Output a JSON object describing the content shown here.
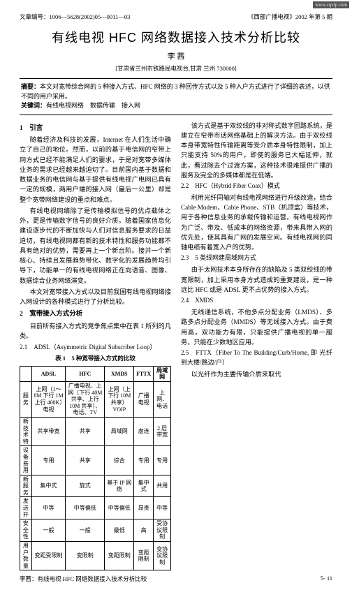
{
  "meta": {
    "corner_url": "www.cqvip.com",
    "article_no_label": "文章编号：",
    "article_no": "1006—5628(2002)05—0011—03",
    "journal_issue": "《西部广播电视》2002 年第 5 期"
  },
  "title": "有线电视 HFC 网络数据接入技术分析比较",
  "author": "李 茜",
  "affiliation": "[甘肃省兰州市铁路局电视台,甘肃 兰州 730000]",
  "abstract": {
    "label": "摘要：",
    "text": "本文对宽带综合网的 5 种接入方式、HFC 网络的 3 种回传方式以及 5 种入户方式进行了详细的表述，以供不同的用户采用。",
    "kw_label": "关键词：",
    "keywords": "有线电视网络　数据传输　接入网"
  },
  "sections": {
    "s1_h": "1　引言",
    "s1_p1": "随着经济及科技的发展，Internet 在人们生活中确立了自己的地位。然而，以前的基于电信网的窄带上网方式已经不能满足人们的要求，于是对宽带多媒体业务的需求已经越来越迫切了。目前国内基于数据和数据业务的电信网与基于提供有线电视广电网已具有一定的规模，两用户端的接入网（最后一公里）却是整个宽带网络建设的重点和难点。",
    "s1_p2": "有线电视网络除了是传输模拟信号的优点载体之外，更是传输数字信号的良好介质。随着国家信息化建设逐步代的不断加快与人们对信息服务要求的日益迫切，有线电视网都有新的技术特性和服务功能都不具有绝对的优势，需要再上一个新台阶。接并一个新核心、持续且发展趋势带化、数字化的发展趋势均引导下，功能单一的有线电视网络正在向语音、图像、数据综合业务网络演变。",
    "s1_p3": "本文对宽带接入方式以及目前我国有线电视网络接入网设计的各种模式进行了分析比较。",
    "s2_h": "2　宽带接入方式分析",
    "s2_p1": "目前所有接入方式的竞争焦点集中在表 1 所列的几类。",
    "s21_h": "2.1　ADSL（Asymmetric Digital Subscriber Loop）",
    "s21_p1": "该方式是基于双绞线的非对称式数字回路系统，是建立在窄带市话网络基础上的解决方法。由于双绞线本身带宽特性传输距离等受介质本身特性限制，加上只能支持 50%的用户，即使的服务已大幅延伸，就此，看过除去个过渡方案，这种技术很难提供广播的服务及完全的多媒体都是在低端。",
    "s22_h": "2.2　HFC（Hybrid Fiber Coax）模式",
    "s22_p1": "利用光纤同轴对有线电视网络进行升级改造，结合 Cable Modem、Cable Phone、STB（机顶盒）等技术，用于各种信息业务的承载传输和运营。有线电视网作为广泛、带及、低成本的网络资源，带来具带入网的优先处，使其具有广网的发展空间。有线电视网的同轴电缆有着宽入户的优势。",
    "s23_h": "2.3　5 类线网建局域网方式",
    "s23_p1": "由于太网技术本身所存在的缺陷及 5 类双绞线的带宽限制，加上采用本身方式造成的重复建设，是一种远比 HFC 或是 ADSL 更不占优势的接入方式。",
    "s24_h": "2.4　XMDS",
    "s24_p1": "无线通信系统，不他多点分配业务（LMDS）、多路多点分配业务（MMDS）等无线接入方式。由于费用高，双功能力有限，只能提供广播电视的单一服务，只能在少数地区应用。",
    "s25_h": "2.5　FTTX（Fiber To The Building/Curb/Home, 即 光纤到大楼/路边/户）",
    "s25_p1": "以光纤作为主要传输介质来取代"
  },
  "table": {
    "caption": "表 1　5 种宽带接入方式的比较",
    "headers": [
      "",
      "ADSL",
      "HFC",
      "XMDS",
      "FTTX",
      "局域网"
    ],
    "rows": [
      [
        "服务",
        "上网（1～8M 下行 1M 上行 400K）电视",
        "广播电视、上网（下行 40M 共享、上行 10M 共享）、电话、TV",
        "上网（上下行 10M 共享）VOIP",
        "广播电视",
        "上网、电话"
      ],
      [
        "新技术特",
        "共享带宽",
        "共享",
        "局域网",
        "虚连",
        "2 层带宽"
      ],
      [
        "设备费用",
        "专用",
        "共享",
        "综合",
        "专用",
        "专用"
      ],
      [
        "新服务",
        "集中式",
        "旋式",
        "基于 IP 网络",
        "集中式",
        "共用"
      ],
      [
        "发送开",
        "中等",
        "中等偏低",
        "中等偏低",
        "昂贵",
        "中等"
      ],
      [
        "安全性",
        "一般",
        "一般",
        "最低",
        "高",
        "受协议限制"
      ],
      [
        "用户数量",
        "变距受限制",
        "变限制",
        "变距限制",
        "变距限制",
        "变协议限制"
      ]
    ]
  },
  "footer": {
    "left": "李茜：有线电视 HFC 网络数据接入技术分析比较",
    "right": "5- 11"
  }
}
